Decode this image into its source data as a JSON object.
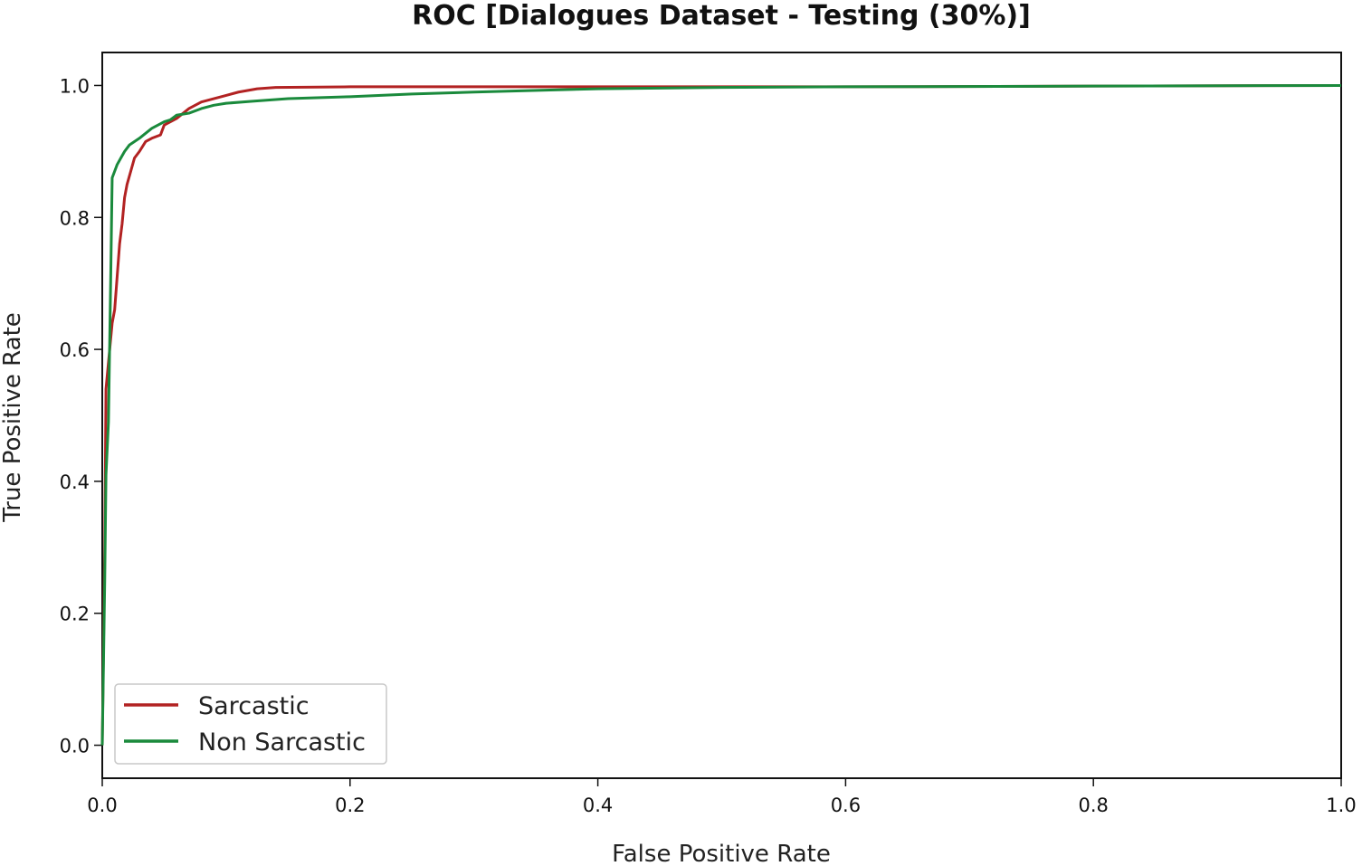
{
  "chart_data": {
    "type": "line",
    "title": "ROC [Dialogues Dataset - Testing (30%)]",
    "xlabel": "False Positive Rate",
    "ylabel": "True Positive Rate",
    "xlim": [
      0.0,
      1.0
    ],
    "ylim": [
      -0.05,
      1.05
    ],
    "xticks": [
      0.0,
      0.2,
      0.4,
      0.6,
      0.8,
      1.0
    ],
    "xtick_labels": [
      "0.0",
      "0.2",
      "0.4",
      "0.6",
      "0.8",
      "1.0"
    ],
    "yticks": [
      0.0,
      0.2,
      0.4,
      0.6,
      0.8,
      1.0
    ],
    "ytick_labels": [
      "0.0",
      "0.2",
      "0.4",
      "0.6",
      "0.8",
      "1.0"
    ],
    "grid": false,
    "legend_position": "lower-left",
    "series": [
      {
        "name": "Sarcastic",
        "color": "#b22222",
        "points": [
          [
            0.0,
            0.0
          ],
          [
            0.002,
            0.3
          ],
          [
            0.003,
            0.54
          ],
          [
            0.004,
            0.56
          ],
          [
            0.006,
            0.6
          ],
          [
            0.008,
            0.64
          ],
          [
            0.01,
            0.66
          ],
          [
            0.012,
            0.71
          ],
          [
            0.014,
            0.76
          ],
          [
            0.016,
            0.79
          ],
          [
            0.018,
            0.83
          ],
          [
            0.02,
            0.85
          ],
          [
            0.023,
            0.87
          ],
          [
            0.026,
            0.89
          ],
          [
            0.03,
            0.9
          ],
          [
            0.035,
            0.915
          ],
          [
            0.04,
            0.92
          ],
          [
            0.047,
            0.925
          ],
          [
            0.05,
            0.94
          ],
          [
            0.06,
            0.95
          ],
          [
            0.07,
            0.965
          ],
          [
            0.08,
            0.975
          ],
          [
            0.09,
            0.98
          ],
          [
            0.1,
            0.985
          ],
          [
            0.11,
            0.99
          ],
          [
            0.125,
            0.995
          ],
          [
            0.14,
            0.997
          ],
          [
            0.2,
            0.998
          ],
          [
            0.4,
            0.998
          ],
          [
            0.6,
            0.998
          ],
          [
            0.8,
            0.999
          ],
          [
            1.0,
            1.0
          ]
        ]
      },
      {
        "name": "Non Sarcastic",
        "color": "#1a8a3c",
        "points": [
          [
            0.0,
            0.0
          ],
          [
            0.002,
            0.25
          ],
          [
            0.003,
            0.41
          ],
          [
            0.005,
            0.49
          ],
          [
            0.006,
            0.61
          ],
          [
            0.007,
            0.73
          ],
          [
            0.008,
            0.86
          ],
          [
            0.01,
            0.87
          ],
          [
            0.012,
            0.88
          ],
          [
            0.015,
            0.89
          ],
          [
            0.018,
            0.9
          ],
          [
            0.022,
            0.91
          ],
          [
            0.03,
            0.92
          ],
          [
            0.04,
            0.935
          ],
          [
            0.05,
            0.945
          ],
          [
            0.055,
            0.948
          ],
          [
            0.06,
            0.955
          ],
          [
            0.07,
            0.958
          ],
          [
            0.08,
            0.965
          ],
          [
            0.09,
            0.97
          ],
          [
            0.1,
            0.973
          ],
          [
            0.12,
            0.976
          ],
          [
            0.15,
            0.98
          ],
          [
            0.2,
            0.983
          ],
          [
            0.25,
            0.987
          ],
          [
            0.3,
            0.99
          ],
          [
            0.4,
            0.995
          ],
          [
            0.5,
            0.997
          ],
          [
            0.6,
            0.998
          ],
          [
            0.8,
            0.999
          ],
          [
            1.0,
            1.0
          ]
        ]
      }
    ]
  }
}
